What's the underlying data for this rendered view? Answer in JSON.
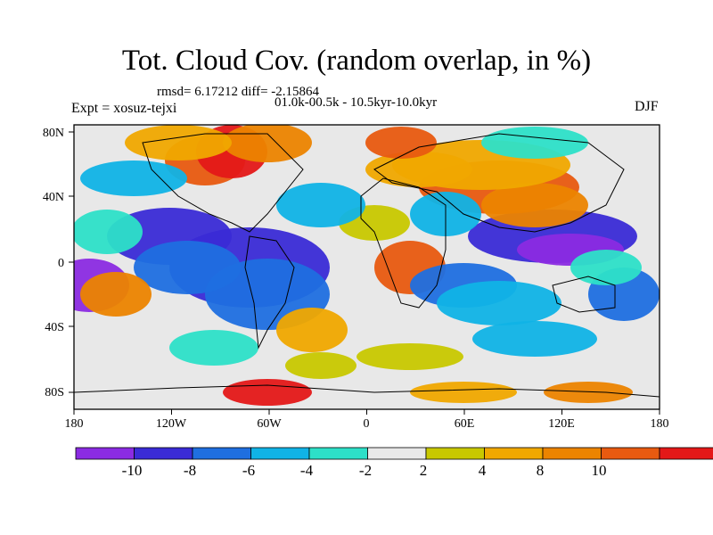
{
  "figure": {
    "title": "Tot. Cloud Cov. (random overlap, in %)",
    "rmsd_line": "rmsd= 6.17212 diff= -2.15864",
    "period_line": "01.0k-00.5k - 10.5kyr-10.0kyr",
    "experiment": "Expt = xosuz-tejxi",
    "season": "DJF"
  },
  "axes": {
    "lat_labels": [
      "80N",
      "40N",
      "0",
      "40S",
      "80S"
    ],
    "lon_labels": [
      "180",
      "120W",
      "60W",
      "0",
      "60E",
      "120E",
      "180"
    ]
  },
  "colorbar": {
    "colors": [
      "#8b2be2",
      "#3a2bd6",
      "#1f6fe0",
      "#10b3e6",
      "#2de0c8",
      "#e8e8e8",
      "#c8c800",
      "#f0a800",
      "#ec8400",
      "#e85a10",
      "#e41818"
    ],
    "labels": [
      "-10",
      "-8",
      "-6",
      "-4",
      "-2",
      "2",
      "4",
      "8",
      "10"
    ]
  },
  "map_colors": {
    "background": "#e8e8e8",
    "coast": "#000000"
  }
}
